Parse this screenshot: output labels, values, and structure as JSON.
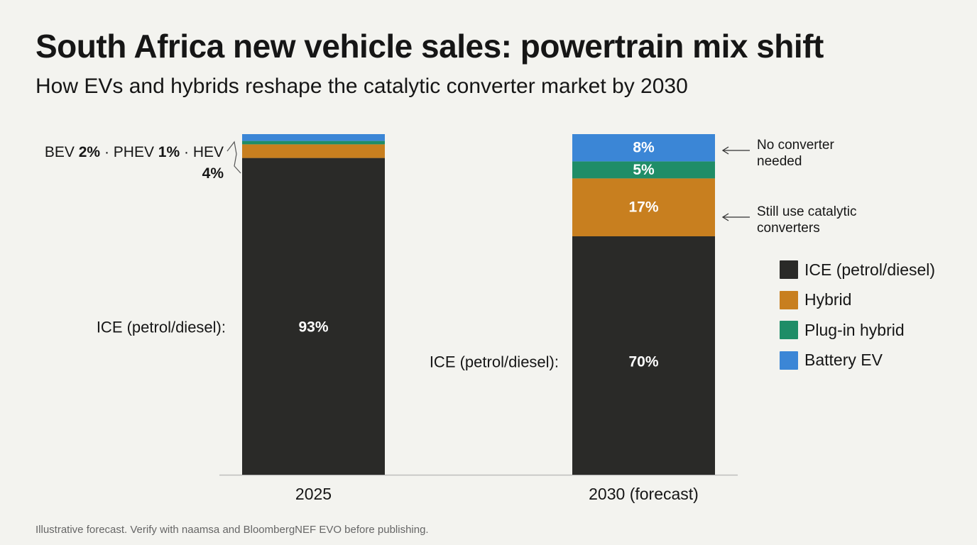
{
  "title": "South Africa new vehicle sales: powertrain mix shift",
  "subtitle": "How EVs and hybrids reshape the catalytic converter market by 2030",
  "footnote": "Illustrative forecast. Verify with naamsa and BloombergNEF EVO before publishing.",
  "annotations": {
    "small_segments_2025": {
      "parts": [
        {
          "label": "BEV ",
          "value": "2%"
        },
        {
          "label": " · PHEV ",
          "value": "1%"
        },
        {
          "label": " · HEV ",
          "value": "4%"
        }
      ]
    },
    "no_converter": [
      "No converter",
      "needed"
    ],
    "still_use": [
      "Still use catalytic",
      "converters"
    ]
  },
  "chart_data": {
    "type": "bar",
    "stacked": true,
    "categories": [
      "2025",
      "2030 (forecast)"
    ],
    "ylim": [
      0,
      100
    ],
    "series": [
      {
        "name": "ICE (petrol/diesel)",
        "color": "#2a2a28",
        "values": [
          93,
          70
        ],
        "labels": [
          "93%",
          "70%"
        ]
      },
      {
        "name": "Hybrid",
        "color": "#c87f1f",
        "values": [
          4,
          17
        ],
        "labels": [
          "",
          "17%"
        ]
      },
      {
        "name": "Plug-in hybrid",
        "color": "#1f8d67",
        "values": [
          1,
          5
        ],
        "labels": [
          "",
          "5%"
        ]
      },
      {
        "name": "Battery EV",
        "color": "#3b86d6",
        "values": [
          2,
          8
        ],
        "labels": [
          "",
          "8%"
        ]
      }
    ],
    "side_labels": [
      "ICE (petrol/diesel):",
      "ICE (petrol/diesel):"
    ],
    "legend_position": "right",
    "grid": false
  }
}
